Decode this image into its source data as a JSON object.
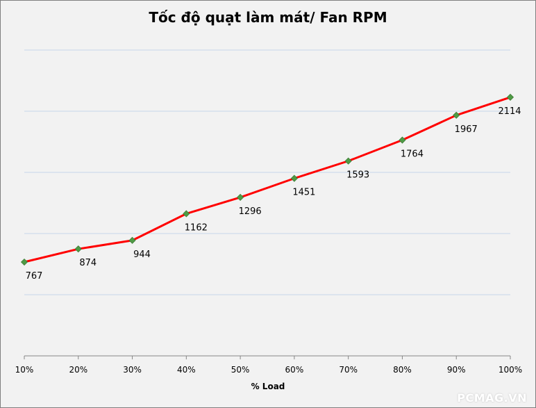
{
  "chart_data": {
    "type": "line",
    "title": "Tốc độ quạt làm mát/ Fan RPM",
    "xlabel": "% Load",
    "ylabel": "",
    "categories": [
      "10%",
      "20%",
      "30%",
      "40%",
      "50%",
      "60%",
      "70%",
      "80%",
      "90%",
      "100%"
    ],
    "series": [
      {
        "values": [
          767,
          874,
          944,
          1162,
          1296,
          1451,
          1593,
          1764,
          1967,
          2114
        ]
      }
    ],
    "data_labels": [
      "767",
      "874",
      "944",
      "1162",
      "1296",
      "1451",
      "1593",
      "1764",
      "1967",
      "2114"
    ],
    "ylim": [
      0,
      2500
    ],
    "gridlines_y": [
      500,
      1000,
      1500,
      2000,
      2500
    ],
    "grid": true,
    "legend": "none",
    "colors": {
      "line": "#ff0000",
      "marker": "#4f9a45",
      "grid": "#c5d6ea",
      "background": "#f2f2f2"
    }
  },
  "watermark": "PCMAG.VN"
}
